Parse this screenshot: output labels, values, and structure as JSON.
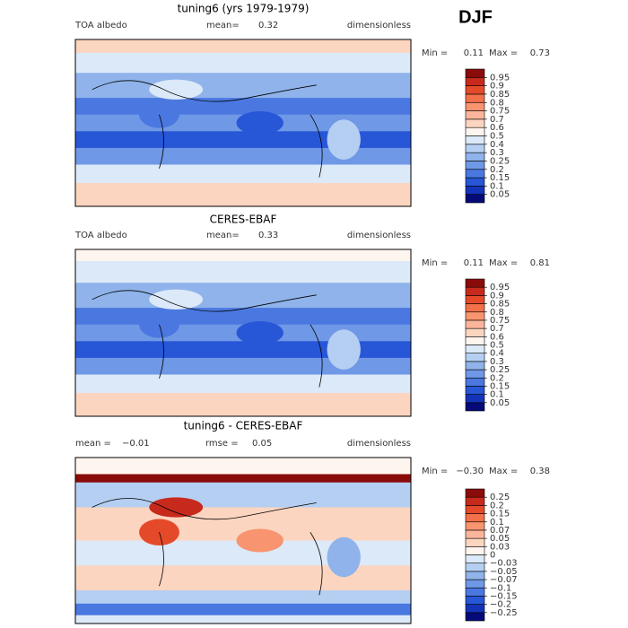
{
  "season": "DJF",
  "panels": [
    {
      "title": "tuning6 (yrs 1979-1979)",
      "left_label": "TOA albedo",
      "stats": [
        {
          "label": "mean=",
          "value": 0.32
        }
      ],
      "right_label": "dimensionless",
      "min_label": "Min =",
      "min": 0.11,
      "max_label": "Max =",
      "max": 0.73,
      "levels": [
        0.05,
        0.1,
        0.15,
        0.2,
        0.25,
        0.3,
        0.4,
        0.5,
        0.6,
        0.7,
        0.75,
        0.8,
        0.85,
        0.9,
        0.95
      ],
      "colors": [
        "#050a78",
        "#1533b8",
        "#2756d6",
        "#4a78e0",
        "#6f98e6",
        "#8fb3ea",
        "#b5cff2",
        "#dce9f8",
        "#fff5ef",
        "#fcd5c0",
        "#fbb59a",
        "#f89470",
        "#f2704a",
        "#e44a2a",
        "#c72a1c",
        "#8a0c0a"
      ]
    },
    {
      "title": "CERES-EBAF",
      "left_label": "TOA albedo",
      "stats": [
        {
          "label": "mean=",
          "value": 0.33
        }
      ],
      "right_label": "dimensionless",
      "min_label": "Min =",
      "min": 0.11,
      "max_label": "Max =",
      "max": 0.81,
      "levels": [
        0.05,
        0.1,
        0.15,
        0.2,
        0.25,
        0.3,
        0.4,
        0.5,
        0.6,
        0.7,
        0.75,
        0.8,
        0.85,
        0.9,
        0.95
      ],
      "colors": [
        "#050a78",
        "#1533b8",
        "#2756d6",
        "#4a78e0",
        "#6f98e6",
        "#8fb3ea",
        "#b5cff2",
        "#dce9f8",
        "#fff5ef",
        "#fcd5c0",
        "#fbb59a",
        "#f89470",
        "#f2704a",
        "#e44a2a",
        "#c72a1c",
        "#8a0c0a"
      ]
    },
    {
      "title": "tuning6 - CERES-EBAF",
      "left_label": null,
      "stats": [
        {
          "label": "mean =",
          "value": {
            "value": -0.01,
            "label": "−0.01"
          }
        },
        {
          "label": "rmse =",
          "value": 0.05
        }
      ],
      "right_label": "dimensionless",
      "min_label": "Min =",
      "min": {
        "value": -0.3,
        "label": "−0.30"
      },
      "max_label": "Max =",
      "max": 0.38,
      "levels": [
        {
          "value": -0.25,
          "label": "−0.25"
        },
        {
          "value": -0.2,
          "label": "−0.2"
        },
        {
          "value": -0.15,
          "label": "−0.15"
        },
        {
          "value": -0.1,
          "label": "−0.1"
        },
        {
          "value": -0.07,
          "label": "−0.07"
        },
        {
          "value": -0.05,
          "label": "−0.05"
        },
        {
          "value": -0.03,
          "label": "−0.03"
        },
        0,
        0.03,
        0.05,
        0.07,
        0.1,
        0.15,
        0.2,
        0.25
      ],
      "colors": [
        "#050a78",
        "#1533b8",
        "#2756d6",
        "#4a78e0",
        "#6f98e6",
        "#8fb3ea",
        "#b5cff2",
        "#dce9f8",
        "#fff5ef",
        "#fcd5c0",
        "#fbb59a",
        "#f89470",
        "#f2704a",
        "#e44a2a",
        "#c72a1c",
        "#8a0c0a"
      ]
    }
  ]
}
